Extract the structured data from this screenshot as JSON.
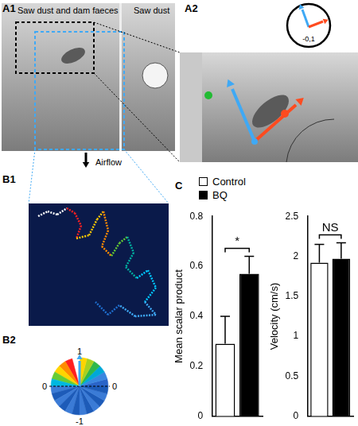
{
  "panels": {
    "A1": {
      "label": "A1",
      "left_text": "Saw dust and dam faeces",
      "right_text": "Saw dust",
      "arrow_text": "Airflow"
    },
    "A2": {
      "label": "A2",
      "dial_text": "-0,1"
    },
    "B1": {
      "label": "B1"
    },
    "B2": {
      "label": "B2",
      "top": 1,
      "left": 0,
      "right": 0,
      "bottom": -1
    },
    "C": {
      "label": "C"
    }
  },
  "chart_data": [
    {
      "type": "bar",
      "y_label": "Mean scalar product",
      "categories": [
        null
      ],
      "series": [
        {
          "name": "Control",
          "color": "#ffffff",
          "values": [
            0.29
          ],
          "errors": [
            0.11
          ]
        },
        {
          "name": "BQ",
          "color": "#000000",
          "values": [
            0.57
          ],
          "errors": [
            0.07
          ]
        }
      ],
      "ylim": [
        0,
        0.8
      ],
      "yticks": [
        0,
        0.2,
        0.4,
        0.6,
        0.8
      ],
      "grid": false,
      "tick_labels": "y",
      "legend": "top",
      "annotation": "*"
    },
    {
      "type": "bar",
      "y_label": "Velocity (cm/s)",
      "categories": [
        null
      ],
      "series": [
        {
          "name": "Control",
          "color": "#ffffff",
          "values": [
            1.92
          ],
          "errors": [
            0.23
          ]
        },
        {
          "name": "BQ",
          "color": "#000000",
          "values": [
            1.97
          ],
          "errors": [
            0.2
          ]
        }
      ],
      "ylim": [
        0,
        2.5
      ],
      "yticks": [
        0,
        0.5,
        1,
        1.5,
        2,
        2.5
      ],
      "grid": false,
      "tick_labels": "y",
      "legend": "top",
      "annotation": "NS"
    }
  ]
}
